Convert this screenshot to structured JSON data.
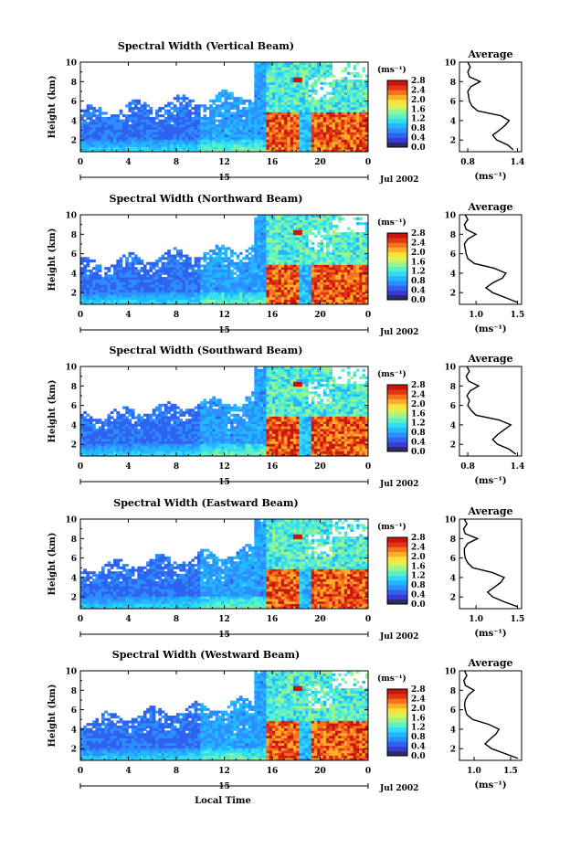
{
  "figure": {
    "xlabel": "Local Time",
    "colormap": [
      "#2c2c66",
      "#3a3ad8",
      "#2f62f0",
      "#2c8eff",
      "#22b8ff",
      "#33dcf4",
      "#5af0c8",
      "#9af58e",
      "#d8f25a",
      "#fbe13a",
      "#fcae28",
      "#f5721e",
      "#e43516",
      "#c8160e"
    ],
    "missing_color": "#ffffff"
  },
  "chart_data": [
    {
      "type": "heatmap",
      "title": "Spectral Width (Vertical Beam)",
      "ylabel": "Height (km)",
      "x_range": [
        0,
        24
      ],
      "x_ticks": [
        "0",
        "4",
        "8",
        "12",
        "16",
        "20",
        "0"
      ],
      "date_day": "15",
      "date_label": "Jul 2002",
      "y_range": [
        0.8,
        10
      ],
      "y_ticks": [
        "2",
        "4",
        "6",
        "8",
        "10"
      ],
      "colorbar": {
        "unit": "(ms⁻¹)",
        "range": [
          0.0,
          2.8
        ],
        "ticks": [
          "2.8",
          "2.4",
          "2.0",
          "1.6",
          "1.2",
          "0.8",
          "0.4",
          "0.0"
        ]
      },
      "average_profile": {
        "title": "Average",
        "xlabel": "(ms⁻¹)",
        "x_range": [
          0.7,
          1.45
        ],
        "x_ticks": [
          "0.8",
          "1.4"
        ],
        "y_ticks": [
          "2",
          "4",
          "6",
          "8",
          "10"
        ],
        "heights_km": [
          1.0,
          1.5,
          2.0,
          2.5,
          3.0,
          3.5,
          4.0,
          4.5,
          5.0,
          5.5,
          6.0,
          6.5,
          7.0,
          7.5,
          8.0,
          8.5,
          9.0,
          9.5,
          10.0
        ],
        "values_ms": [
          1.35,
          1.28,
          1.15,
          1.1,
          1.18,
          1.25,
          1.3,
          1.2,
          0.92,
          0.85,
          0.82,
          0.81,
          0.8,
          0.84,
          0.95,
          0.82,
          0.8,
          0.83,
          0.8
        ]
      }
    },
    {
      "type": "heatmap",
      "title": "Spectral Width (Northward Beam)",
      "ylabel": "Height (km)",
      "x_range": [
        0,
        24
      ],
      "x_ticks": [
        "0",
        "4",
        "8",
        "12",
        "16",
        "20",
        "0"
      ],
      "date_day": "15",
      "date_label": "Jul 2002",
      "y_range": [
        0.8,
        10
      ],
      "y_ticks": [
        "2",
        "4",
        "6",
        "8",
        "10"
      ],
      "colorbar": {
        "unit": "(ms⁻¹)",
        "range": [
          0.0,
          2.8
        ],
        "ticks": [
          "2.8",
          "2.4",
          "2.0",
          "1.6",
          "1.2",
          "0.8",
          "0.4",
          "0.0"
        ]
      },
      "average_profile": {
        "title": "Average",
        "xlabel": "(ms⁻¹)",
        "x_range": [
          0.8,
          1.55
        ],
        "x_ticks": [
          "1.0",
          "1.5"
        ],
        "y_ticks": [
          "2",
          "4",
          "6",
          "8",
          "10"
        ],
        "heights_km": [
          1.0,
          1.5,
          2.0,
          2.5,
          3.0,
          3.5,
          4.0,
          4.5,
          5.0,
          5.5,
          6.0,
          6.5,
          7.0,
          7.5,
          8.0,
          8.5,
          9.0,
          9.5,
          10.0
        ],
        "values_ms": [
          1.5,
          1.35,
          1.2,
          1.12,
          1.2,
          1.32,
          1.36,
          1.22,
          0.98,
          0.9,
          0.88,
          0.87,
          0.86,
          0.9,
          1.0,
          0.88,
          0.86,
          0.9,
          0.87
        ]
      }
    },
    {
      "type": "heatmap",
      "title": "Spectral Width (Southward Beam)",
      "ylabel": "Height (km)",
      "x_range": [
        0,
        24
      ],
      "x_ticks": [
        "0",
        "4",
        "8",
        "12",
        "16",
        "20",
        "0"
      ],
      "date_day": "15",
      "date_label": "Jul 2002",
      "y_range": [
        0.8,
        10
      ],
      "y_ticks": [
        "2",
        "4",
        "6",
        "8",
        "10"
      ],
      "colorbar": {
        "unit": "(ms⁻¹)",
        "range": [
          0.0,
          2.8
        ],
        "ticks": [
          "2.8",
          "2.4",
          "2.0",
          "1.6",
          "1.2",
          "0.8",
          "0.4",
          "0.0"
        ]
      },
      "average_profile": {
        "title": "Average",
        "xlabel": "(ms⁻¹)",
        "x_range": [
          0.7,
          1.45
        ],
        "x_ticks": [
          "0.8",
          "1.4"
        ],
        "y_ticks": [
          "2",
          "4",
          "6",
          "8",
          "10"
        ],
        "heights_km": [
          1.0,
          1.5,
          2.0,
          2.5,
          3.0,
          3.5,
          4.0,
          4.5,
          5.0,
          5.5,
          6.0,
          6.5,
          7.0,
          7.5,
          8.0,
          8.5,
          9.0,
          9.5,
          10.0
        ],
        "values_ms": [
          1.38,
          1.3,
          1.16,
          1.1,
          1.16,
          1.24,
          1.32,
          1.18,
          0.9,
          0.84,
          0.8,
          0.82,
          0.79,
          0.83,
          0.93,
          0.81,
          0.78,
          0.82,
          0.79
        ]
      }
    },
    {
      "type": "heatmap",
      "title": "Spectral Width (Eastward Beam)",
      "ylabel": "Height (km)",
      "x_range": [
        0,
        24
      ],
      "x_ticks": [
        "0",
        "4",
        "8",
        "12",
        "16",
        "20",
        "0"
      ],
      "date_day": "15",
      "date_label": "Jul 2002",
      "y_range": [
        0.8,
        10
      ],
      "y_ticks": [
        "2",
        "4",
        "6",
        "8",
        "10"
      ],
      "colorbar": {
        "unit": "(ms⁻¹)",
        "range": [
          0.0,
          2.8
        ],
        "ticks": [
          "2.8",
          "2.4",
          "2.0",
          "1.6",
          "1.2",
          "0.8",
          "0.4",
          "0.0"
        ]
      },
      "average_profile": {
        "title": "Average",
        "xlabel": "(ms⁻¹)",
        "x_range": [
          0.8,
          1.55
        ],
        "x_ticks": [
          "1.0",
          "1.5"
        ],
        "y_ticks": [
          "2",
          "4",
          "6",
          "8",
          "10"
        ],
        "heights_km": [
          1.0,
          1.5,
          2.0,
          2.5,
          3.0,
          3.5,
          4.0,
          4.5,
          5.0,
          5.5,
          6.0,
          6.5,
          7.0,
          7.5,
          8.0,
          8.5,
          9.0,
          9.5,
          10.0
        ],
        "values_ms": [
          1.5,
          1.34,
          1.2,
          1.14,
          1.22,
          1.3,
          1.34,
          1.2,
          0.96,
          0.9,
          0.87,
          0.86,
          0.86,
          0.9,
          1.02,
          0.87,
          0.85,
          0.89,
          0.86
        ]
      }
    },
    {
      "type": "heatmap",
      "title": "Spectral Width (Westward Beam)",
      "ylabel": "Height (km)",
      "x_range": [
        0,
        24
      ],
      "x_ticks": [
        "0",
        "4",
        "8",
        "12",
        "16",
        "20",
        "0"
      ],
      "date_day": "15",
      "date_label": "Jul 2002",
      "y_range": [
        0.8,
        10
      ],
      "y_ticks": [
        "2",
        "4",
        "6",
        "8",
        "10"
      ],
      "colorbar": {
        "unit": "(ms⁻¹)",
        "range": [
          0.0,
          2.8
        ],
        "ticks": [
          "2.8",
          "2.4",
          "2.0",
          "1.6",
          "1.2",
          "0.8",
          "0.4",
          "0.0"
        ]
      },
      "average_profile": {
        "title": "Average",
        "xlabel": "(ms⁻¹)",
        "x_range": [
          0.8,
          1.65
        ],
        "x_ticks": [
          "1.0",
          "1.5"
        ],
        "y_ticks": [
          "2",
          "4",
          "6",
          "8",
          "10"
        ],
        "heights_km": [
          1.0,
          1.5,
          2.0,
          2.5,
          3.0,
          3.5,
          4.0,
          4.5,
          5.0,
          5.5,
          6.0,
          6.5,
          7.0,
          7.5,
          8.0,
          8.5,
          9.0,
          9.5,
          10.0
        ],
        "values_ms": [
          1.6,
          1.42,
          1.24,
          1.15,
          1.22,
          1.3,
          1.34,
          1.2,
          0.98,
          0.9,
          0.88,
          0.87,
          0.88,
          0.92,
          1.0,
          0.88,
          0.86,
          0.9,
          0.87
        ]
      }
    }
  ]
}
